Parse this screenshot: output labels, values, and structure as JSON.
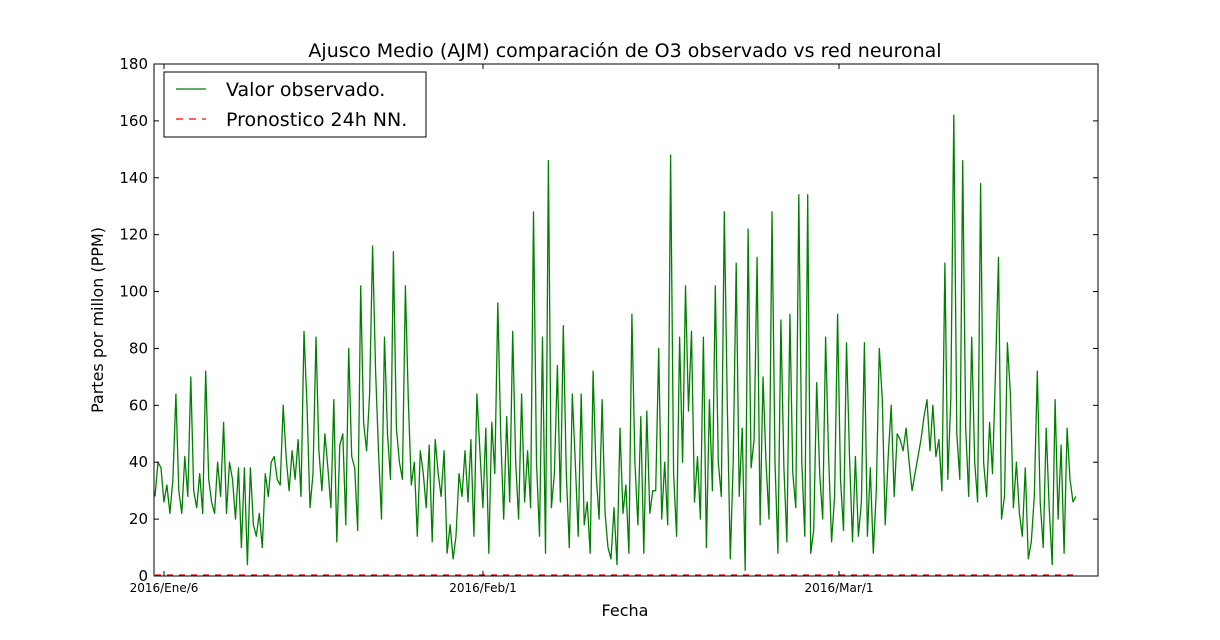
{
  "chart_data": {
    "type": "line",
    "title": "Ajusco Medio (AJM) comparación de O3 observado vs red neuronal",
    "xlabel": "Fecha",
    "ylabel": "Partes por millon (PPM)",
    "ylim": [
      0,
      180
    ],
    "yticks": [
      "0",
      "20",
      "40",
      "60",
      "80",
      "100",
      "120",
      "140",
      "160",
      "180"
    ],
    "xticks": [
      "2016/Ene/6",
      "2016/Feb/1",
      "2016/Mar/1"
    ],
    "grid": false,
    "legend_position": "top-left",
    "series": [
      {
        "name": "Valor observado.",
        "color": "#008000",
        "style": "solid",
        "values": [
          28,
          40,
          38,
          26,
          32,
          22,
          34,
          64,
          30,
          22,
          42,
          28,
          70,
          30,
          24,
          36,
          22,
          72,
          34,
          26,
          22,
          40,
          28,
          54,
          22,
          40,
          34,
          20,
          38,
          10,
          38,
          4,
          38,
          18,
          14,
          22,
          10,
          36,
          28,
          40,
          42,
          34,
          32,
          60,
          42,
          30,
          44,
          34,
          48,
          28,
          86,
          60,
          24,
          36,
          84,
          44,
          30,
          50,
          38,
          24,
          62,
          12,
          46,
          50,
          18,
          80,
          42,
          38,
          16,
          102,
          54,
          44,
          64,
          116,
          72,
          44,
          20,
          84,
          50,
          34,
          114,
          52,
          40,
          34,
          102,
          62,
          32,
          40,
          14,
          44,
          36,
          24,
          46,
          12,
          48,
          36,
          28,
          44,
          8,
          18,
          6,
          14,
          36,
          28,
          44,
          26,
          48,
          14,
          64,
          44,
          24,
          52,
          8,
          54,
          36,
          96,
          50,
          20,
          56,
          26,
          86,
          40,
          20,
          64,
          26,
          44,
          24,
          128,
          40,
          14,
          84,
          8,
          146,
          24,
          36,
          74,
          26,
          88,
          36,
          10,
          64,
          40,
          14,
          64,
          18,
          26,
          8,
          72,
          36,
          20,
          62,
          22,
          10,
          6,
          24,
          4,
          52,
          22,
          32,
          8,
          92,
          40,
          18,
          56,
          8,
          58,
          22,
          30,
          30,
          80,
          20,
          40,
          18,
          148,
          36,
          14,
          84,
          40,
          102,
          58,
          86,
          26,
          42,
          20,
          84,
          10,
          62,
          30,
          102,
          40,
          28,
          128,
          60,
          6,
          40,
          110,
          28,
          52,
          2,
          122,
          38,
          48,
          112,
          18,
          70,
          40,
          20,
          128,
          40,
          8,
          90,
          38,
          12,
          92,
          36,
          24,
          134,
          40,
          14,
          134,
          8,
          16,
          68,
          36,
          20,
          84,
          42,
          12,
          28,
          92,
          34,
          16,
          82,
          42,
          12,
          42,
          14,
          26,
          82,
          14,
          38,
          8,
          30,
          80,
          62,
          18,
          42,
          60,
          28,
          50,
          48,
          44,
          52,
          40,
          30,
          36,
          42,
          48,
          56,
          62,
          44,
          60,
          42,
          48,
          30,
          110,
          34,
          62,
          162,
          50,
          34,
          146,
          52,
          28,
          84,
          40,
          26,
          138,
          40,
          28,
          54,
          36,
          72,
          112,
          20,
          28,
          82,
          64,
          24,
          40,
          22,
          14,
          38,
          6,
          12,
          28,
          72,
          26,
          10,
          52,
          24,
          4,
          62,
          20,
          46,
          8,
          52,
          34,
          26,
          28
        ]
      },
      {
        "name": "Pronostico 24h NN.",
        "color": "#ff0000",
        "style": "dashed",
        "values": [
          0,
          0
        ]
      }
    ]
  }
}
